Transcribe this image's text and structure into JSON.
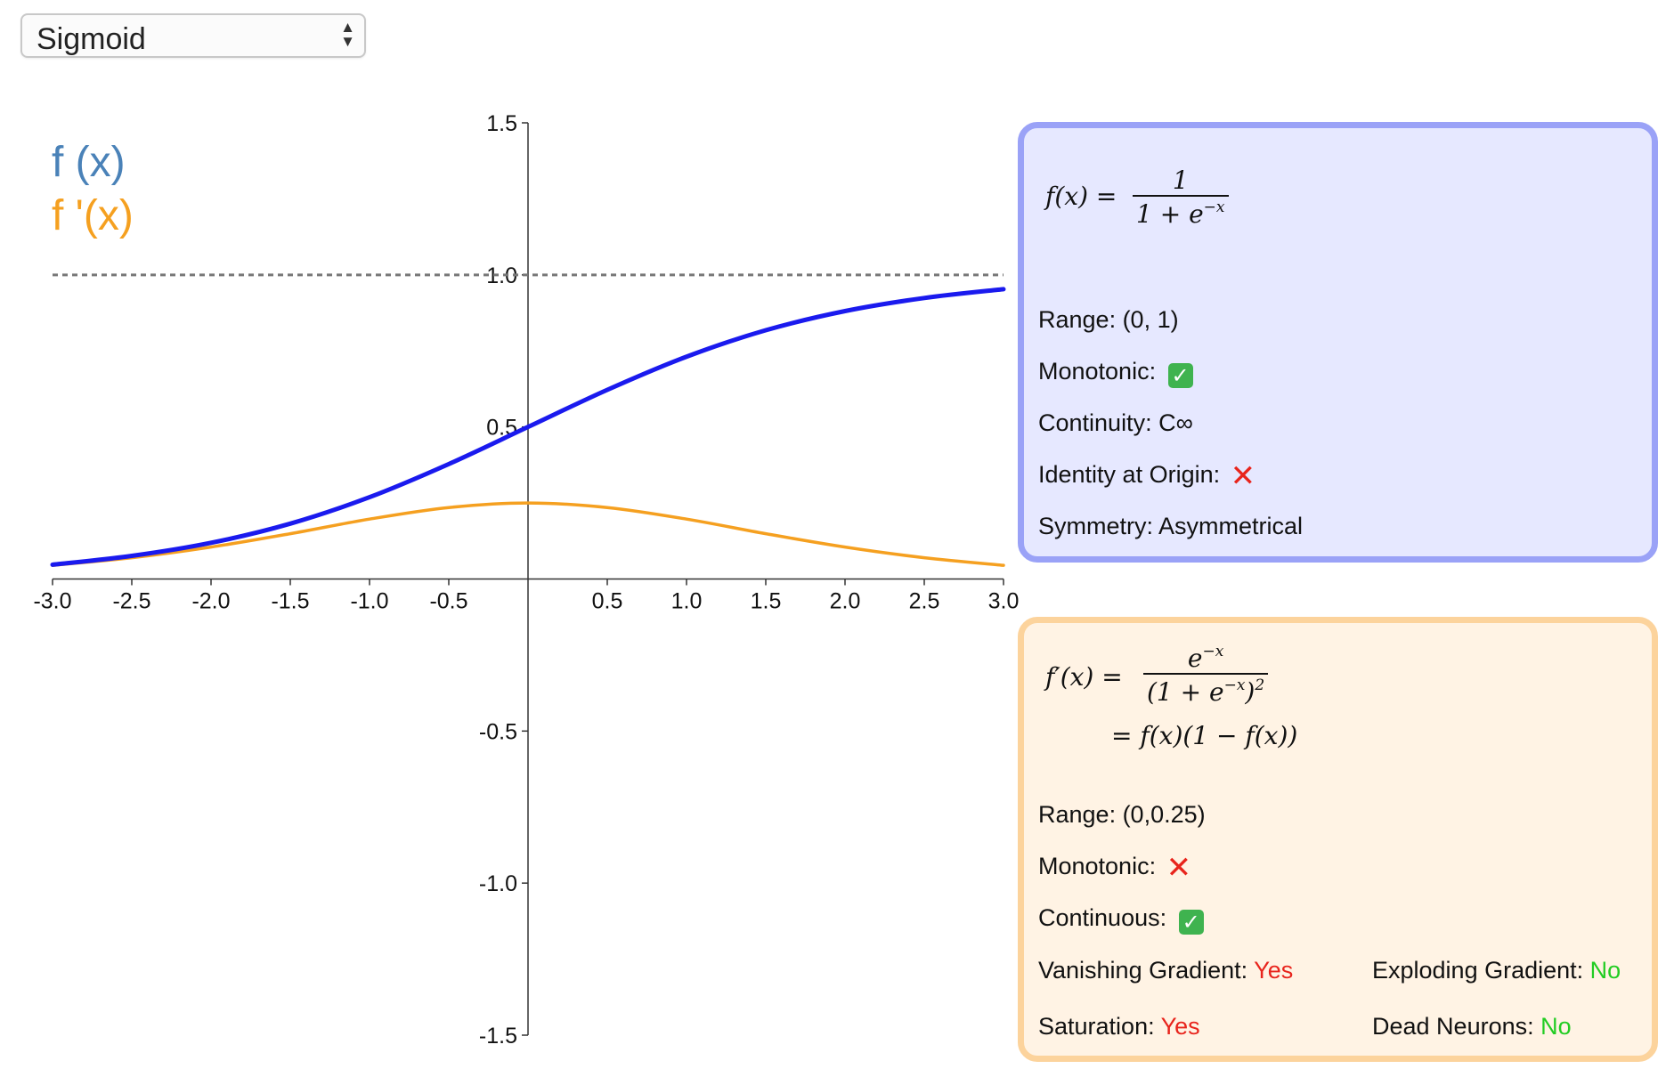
{
  "selector": {
    "value": "Sigmoid",
    "arrows": "▲▼"
  },
  "legend": {
    "f": "f (x)",
    "fprime": "f '(x)"
  },
  "colors": {
    "f_line": "#1a1aee",
    "fprime_line": "#f5a020",
    "f_legend": "#4a82b8",
    "asymptote": "#777777"
  },
  "chart_data": {
    "type": "line",
    "xlim": [
      -3.0,
      3.0
    ],
    "ylim": [
      -1.5,
      1.5
    ],
    "x_ticks": [
      "-3.0",
      "-2.5",
      "-2.0",
      "-1.5",
      "-1.0",
      "-0.5",
      "0.5",
      "1.0",
      "1.5",
      "2.0",
      "2.5",
      "3.0"
    ],
    "y_ticks": [
      "1.5",
      "1.0",
      "0.5",
      "-0.5",
      "-1.0",
      "-1.5"
    ],
    "asymptote_y": 1.0,
    "series": [
      {
        "name": "f (x)",
        "x": [
          -3.0,
          -2.5,
          -2.0,
          -1.5,
          -1.0,
          -0.5,
          0.0,
          0.5,
          1.0,
          1.5,
          2.0,
          2.5,
          3.0
        ],
        "y": [
          0.047,
          0.076,
          0.119,
          0.182,
          0.269,
          0.378,
          0.5,
          0.622,
          0.731,
          0.818,
          0.881,
          0.924,
          0.953
        ]
      },
      {
        "name": "f '(x)",
        "x": [
          -3.0,
          -2.5,
          -2.0,
          -1.5,
          -1.0,
          -0.5,
          0.0,
          0.5,
          1.0,
          1.5,
          2.0,
          2.5,
          3.0
        ],
        "y": [
          0.045,
          0.07,
          0.105,
          0.149,
          0.197,
          0.235,
          0.25,
          0.235,
          0.197,
          0.149,
          0.105,
          0.07,
          0.045
        ]
      }
    ]
  },
  "panel_f": {
    "formula_lhs": "f(x) =",
    "formula_num": "1",
    "formula_den_a": "1 + e",
    "formula_den_sup": "−x",
    "range": "Range: (0, 1)",
    "monotonic": "Monotonic:",
    "monotonic_mark": "✓",
    "continuity": "Continuity: C∞",
    "identity": "Identity at Origin:",
    "identity_mark": "✕",
    "symmetry": "Symmetry: Asymmetrical"
  },
  "panel_fp": {
    "formula_lhs": "f′(x) =",
    "formula_num_a": "e",
    "formula_num_sup": "−x",
    "formula_den_a": "(1 + e",
    "formula_den_sup1": "−x",
    "formula_den_b": ")",
    "formula_den_sup2": "2",
    "formula_line2": "= f(x)(1 − f(x))",
    "range": "Range: (0,0.25)",
    "monotonic": "Monotonic:",
    "monotonic_mark": "✕",
    "continuous": "Continuous:",
    "continuous_mark": "✓",
    "vanishing_label": "Vanishing Gradient:",
    "vanishing_value": "Yes",
    "exploding_label": "Exploding Gradient:",
    "exploding_value": "No",
    "saturation_label": "Saturation:",
    "saturation_value": "Yes",
    "dead_label": "Dead Neurons:",
    "dead_value": "No"
  }
}
